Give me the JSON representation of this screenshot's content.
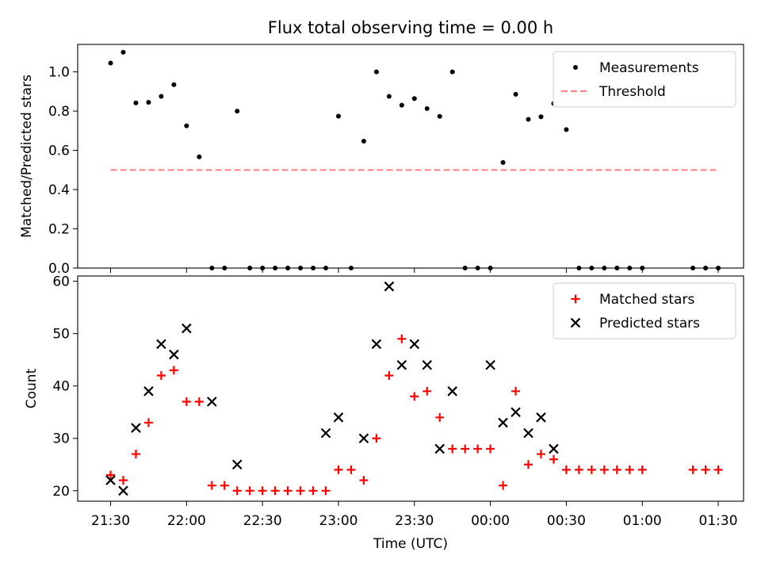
{
  "chart_data": {
    "title": "Flux total observing time = 0.00 h",
    "xlabel": "Time (UTC)",
    "x_tick_labels": [
      "21:30",
      "22:00",
      "22:30",
      "23:00",
      "23:30",
      "00:00",
      "00:30",
      "01:00",
      "01:30"
    ],
    "x_tick_minutes": [
      0,
      30,
      60,
      90,
      120,
      150,
      180,
      210,
      240
    ],
    "xlim_minutes": [
      -13,
      250
    ],
    "panels": [
      {
        "type": "scatter",
        "ylabel": "Matched/Predicted stars",
        "ylim": [
          0,
          1.14
        ],
        "yticks": [
          0.0,
          0.2,
          0.4,
          0.6,
          0.8,
          1.0
        ],
        "ytick_labels": [
          "0.0",
          "0.2",
          "0.4",
          "0.6",
          "0.8",
          "1.0"
        ],
        "legend_position": "top-right",
        "series": [
          {
            "name": "Measurements",
            "marker": "dot",
            "color": "#000000",
            "x_minutes": [
              0,
              5,
              10,
              15,
              20,
              25,
              30,
              35,
              40,
              45,
              50,
              55,
              60,
              65,
              70,
              75,
              80,
              85,
              90,
              95,
              100,
              105,
              110,
              115,
              120,
              125,
              130,
              135,
              140,
              145,
              150,
              155,
              160,
              165,
              170,
              175,
              180,
              185,
              190,
              195,
              200,
              205,
              210,
              230,
              235,
              240
            ],
            "y": [
              1.045,
              1.1,
              0.842,
              0.845,
              0.875,
              0.935,
              0.725,
              0.567,
              0,
              0,
              0.8,
              0,
              0,
              0,
              0,
              0,
              0,
              0,
              0.774,
              0,
              0.647,
              1.0,
              0.875,
              0.83,
              0.864,
              0.813,
              0.773,
              1.0,
              0,
              0,
              0,
              0.538,
              0.886,
              0.758,
              0.771,
              0.839,
              0.706,
              0,
              0,
              0,
              0,
              0,
              0,
              0,
              0,
              0
            ]
          },
          {
            "name": "Threshold",
            "style": "dashed",
            "color": "#ff8080",
            "x_minutes": [
              0,
              240
            ],
            "y": [
              0.5,
              0.5
            ]
          }
        ]
      },
      {
        "type": "scatter",
        "ylabel": "Count",
        "ylim": [
          18,
          61
        ],
        "yticks": [
          20,
          30,
          40,
          50,
          60
        ],
        "ytick_labels": [
          "20",
          "30",
          "40",
          "50",
          "60"
        ],
        "legend_position": "top-right",
        "series": [
          {
            "name": "Matched stars",
            "marker": "plus",
            "color": "#ff0000",
            "x_minutes": [
              0,
              5,
              10,
              15,
              20,
              25,
              30,
              35,
              40,
              45,
              50,
              55,
              60,
              65,
              70,
              75,
              80,
              85,
              90,
              95,
              100,
              105,
              110,
              115,
              120,
              125,
              130,
              135,
              140,
              145,
              150,
              155,
              160,
              165,
              170,
              175,
              180,
              185,
              190,
              195,
              200,
              205,
              210,
              230,
              235,
              240
            ],
            "y": [
              23,
              22,
              27,
              33,
              42,
              43,
              37,
              37,
              21,
              21,
              20,
              20,
              20,
              20,
              20,
              20,
              20,
              20,
              24,
              24,
              22,
              30,
              42,
              49,
              38,
              39,
              34,
              28,
              28,
              28,
              28,
              21,
              39,
              25,
              27,
              26,
              24,
              24,
              24,
              24,
              24,
              24,
              24,
              24,
              24,
              24
            ]
          },
          {
            "name": "Predicted stars",
            "marker": "x",
            "color": "#000000",
            "x_minutes": [
              0,
              5,
              10,
              15,
              20,
              25,
              30,
              40,
              50,
              85,
              90,
              100,
              105,
              110,
              115,
              120,
              125,
              130,
              135,
              150,
              155,
              160,
              165,
              170,
              175
            ],
            "y": [
              22,
              20,
              32,
              39,
              48,
              46,
              51,
              37,
              25,
              31,
              34,
              30,
              48,
              59,
              44,
              48,
              44,
              28,
              39,
              44,
              33,
              35,
              31,
              34,
              28
            ]
          }
        ]
      }
    ]
  }
}
